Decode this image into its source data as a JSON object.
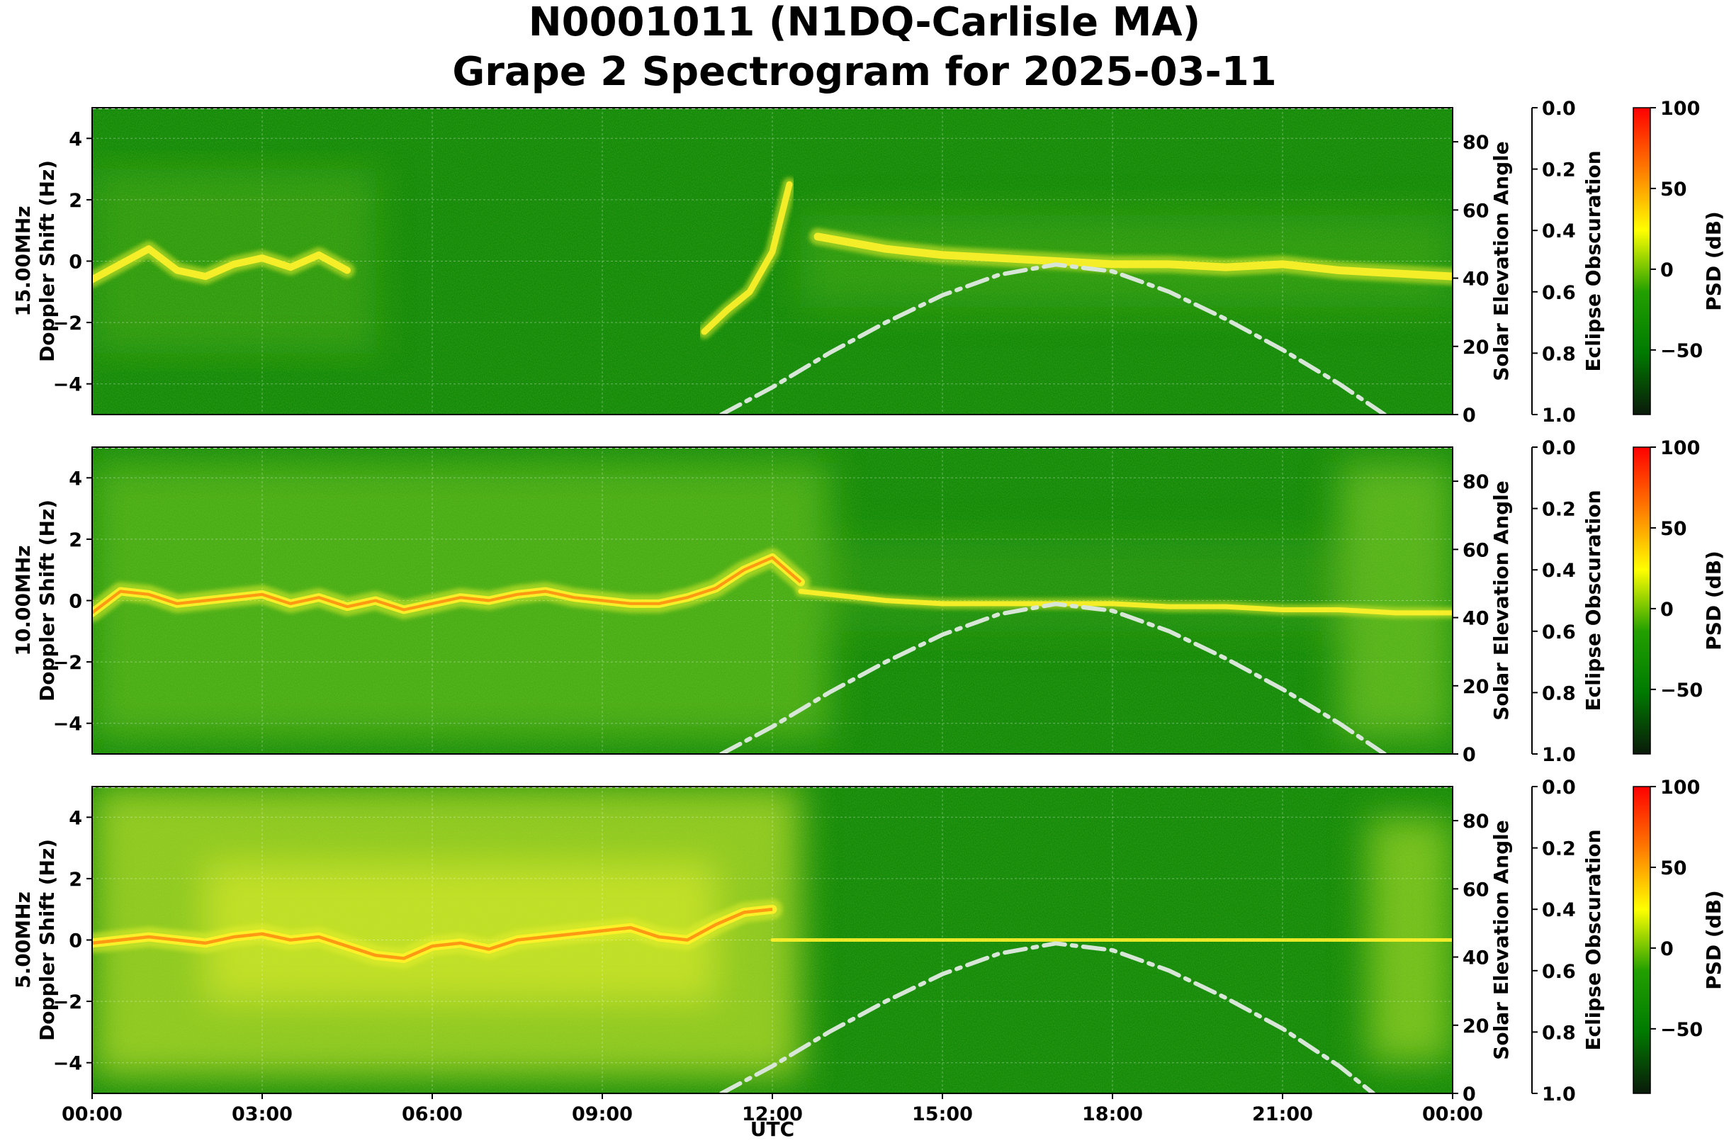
{
  "figure": {
    "title_line1": "N0001011 (N1DQ-Carlisle MA)",
    "title_line2": "Grape 2 Spectrogram for 2025-03-11",
    "xlabel": "UTC",
    "x_ticks": [
      "00:00",
      "03:00",
      "06:00",
      "09:00",
      "12:00",
      "15:00",
      "18:00",
      "21:00",
      "00:00"
    ]
  },
  "chart_data": [
    {
      "type": "heatmap",
      "panel": "15.00MHz",
      "ylabel_line1": "15.00MHz",
      "ylabel_line2": "Doppler Shift (Hz)",
      "ylim": [
        -5,
        5
      ],
      "y_ticks": [
        "4",
        "2",
        "0",
        "−2",
        "−4"
      ],
      "y_tick_values": [
        4,
        2,
        0,
        -2,
        -4
      ],
      "x_range_hours": [
        0,
        24
      ],
      "grid": true,
      "right_axis": {
        "label": "Solar Elevation Angle",
        "ylim": [
          0,
          90
        ],
        "ticks": [
          "0",
          "20",
          "40",
          "60",
          "80"
        ],
        "tick_values": [
          0,
          20,
          40,
          60,
          80
        ]
      },
      "eclipse_axis": {
        "label": "Eclipse Obscuration",
        "ylim": [
          0.0,
          1.0
        ],
        "inverted": true,
        "ticks": [
          "0.0",
          "0.2",
          "0.4",
          "0.6",
          "0.8",
          "1.0"
        ],
        "tick_values": [
          0.0,
          0.2,
          0.4,
          0.6,
          0.8,
          1.0
        ]
      },
      "colorbar": {
        "label": "PSD (dB)",
        "range": [
          -90,
          100
        ],
        "ticks": [
          "100",
          "50",
          "0",
          "−50"
        ],
        "tick_values": [
          100,
          50,
          0,
          -50
        ],
        "colors": [
          "#0a1a0a",
          "#007a00",
          "#22a000",
          "#ffff00",
          "#ff7a00",
          "#ff0000"
        ]
      },
      "solar_elevation": {
        "x_hours": [
          11.1,
          12,
          13,
          14,
          15,
          16,
          17,
          18,
          19,
          20,
          21,
          22,
          22.8
        ],
        "y_deg": [
          0,
          8,
          18,
          27,
          35,
          41,
          44,
          42,
          36,
          28,
          19,
          9,
          0
        ],
        "color": "#d8e6d8",
        "style": "dash-dot"
      },
      "traces": [
        {
          "x_hours": [
            0,
            0.5,
            1,
            1.5,
            2,
            2.5,
            3,
            3.5,
            4,
            4.5
          ],
          "y_hz": [
            -0.6,
            -0.1,
            0.4,
            -0.3,
            -0.5,
            -0.1,
            0.1,
            -0.2,
            0.2,
            -0.3
          ],
          "width": 1.0
        },
        {
          "x_hours": [
            10.8,
            11.2,
            11.6,
            12.0,
            12.3
          ],
          "y_hz": [
            -2.3,
            -1.6,
            -1.0,
            0.3,
            2.5
          ],
          "width": 0.9
        },
        {
          "x_hours": [
            12.8,
            14,
            15,
            16,
            17,
            18,
            19,
            20,
            21,
            22,
            23,
            24
          ],
          "y_hz": [
            0.8,
            0.4,
            0.2,
            0.1,
            0.0,
            -0.1,
            -0.1,
            -0.2,
            -0.1,
            -0.3,
            -0.4,
            -0.5
          ],
          "width": 1.1
        }
      ],
      "background": "green, slightly lighter speckle in first hours"
    },
    {
      "type": "heatmap",
      "panel": "10.00MHz",
      "ylabel_line1": "10.00MHz",
      "ylabel_line2": "Doppler Shift (Hz)",
      "ylim": [
        -5,
        5
      ],
      "y_ticks": [
        "4",
        "2",
        "0",
        "−2",
        "−4"
      ],
      "y_tick_values": [
        4,
        2,
        0,
        -2,
        -4
      ],
      "x_range_hours": [
        0,
        24
      ],
      "grid": true,
      "right_axis": {
        "label": "Solar Elevation Angle",
        "ylim": [
          0,
          90
        ],
        "ticks": [
          "0",
          "20",
          "40",
          "60",
          "80"
        ],
        "tick_values": [
          0,
          20,
          40,
          60,
          80
        ]
      },
      "eclipse_axis": {
        "label": "Eclipse Obscuration",
        "ylim": [
          0.0,
          1.0
        ],
        "inverted": true,
        "ticks": [
          "0.0",
          "0.2",
          "0.4",
          "0.6",
          "0.8",
          "1.0"
        ],
        "tick_values": [
          0.0,
          0.2,
          0.4,
          0.6,
          0.8,
          1.0
        ]
      },
      "colorbar": {
        "label": "PSD (dB)",
        "range": [
          -90,
          100
        ],
        "ticks": [
          "100",
          "50",
          "0",
          "−50"
        ],
        "tick_values": [
          100,
          50,
          0,
          -50
        ],
        "colors": [
          "#0a1a0a",
          "#007a00",
          "#22a000",
          "#ffff00",
          "#ff7a00",
          "#ff0000"
        ]
      },
      "solar_elevation": {
        "x_hours": [
          11.1,
          12,
          13,
          14,
          15,
          16,
          17,
          18,
          19,
          20,
          21,
          22,
          22.8
        ],
        "y_deg": [
          0,
          8,
          18,
          27,
          35,
          41,
          44,
          42,
          36,
          28,
          19,
          9,
          0
        ],
        "color": "#d8e6d8",
        "style": "dash-dot"
      },
      "traces": [
        {
          "x_hours": [
            0,
            0.5,
            1,
            1.5,
            2,
            2.5,
            3,
            3.5,
            4,
            4.5,
            5,
            5.5,
            6,
            6.5,
            7,
            7.5,
            8,
            8.5,
            9,
            9.5,
            10,
            10.5,
            11,
            11.5,
            12,
            12.5
          ],
          "y_hz": [
            -0.4,
            0.3,
            0.2,
            -0.1,
            0.0,
            0.1,
            0.2,
            -0.1,
            0.1,
            -0.2,
            0.0,
            -0.3,
            -0.1,
            0.1,
            0.0,
            0.2,
            0.3,
            0.1,
            0.0,
            -0.1,
            -0.1,
            0.1,
            0.4,
            1.0,
            1.4,
            0.6
          ],
          "width": 1.2
        },
        {
          "x_hours": [
            12.5,
            14,
            15,
            16,
            17,
            18,
            19,
            20,
            21,
            22,
            23,
            24
          ],
          "y_hz": [
            0.3,
            0.0,
            -0.1,
            -0.1,
            -0.1,
            -0.1,
            -0.2,
            -0.2,
            -0.3,
            -0.3,
            -0.4,
            -0.4
          ],
          "width": 0.7
        }
      ],
      "background": "green with yellow-green diffuse spread 00:00-13:00 and 22:00-24:00"
    },
    {
      "type": "heatmap",
      "panel": "5.00MHz",
      "ylabel_line1": "5.00MHz",
      "ylabel_line2": "Doppler Shift (Hz)",
      "ylim": [
        -5,
        5
      ],
      "y_ticks": [
        "4",
        "2",
        "0",
        "−2",
        "−4"
      ],
      "y_tick_values": [
        4,
        2,
        0,
        -2,
        -4
      ],
      "x_range_hours": [
        0,
        24
      ],
      "grid": true,
      "right_axis": {
        "label": "Solar Elevation Angle",
        "ylim": [
          0,
          90
        ],
        "ticks": [
          "0",
          "20",
          "40",
          "60",
          "80"
        ],
        "tick_values": [
          0,
          20,
          40,
          60,
          80
        ]
      },
      "eclipse_axis": {
        "label": "Eclipse Obscuration",
        "ylim": [
          0.0,
          1.0
        ],
        "inverted": true,
        "ticks": [
          "0.0",
          "0.2",
          "0.4",
          "0.6",
          "0.8",
          "1.0"
        ],
        "tick_values": [
          0.0,
          0.2,
          0.4,
          0.6,
          0.8,
          1.0
        ]
      },
      "colorbar": {
        "label": "PSD (dB)",
        "range": [
          -90,
          100
        ],
        "ticks": [
          "100",
          "50",
          "0",
          "−50"
        ],
        "tick_values": [
          100,
          50,
          0,
          -50
        ],
        "colors": [
          "#0a1a0a",
          "#007a00",
          "#22a000",
          "#ffff00",
          "#ff7a00",
          "#ff0000"
        ]
      },
      "solar_elevation": {
        "x_hours": [
          11.1,
          12,
          13,
          14,
          15,
          16,
          17,
          18,
          19,
          20,
          21,
          22,
          22.6
        ],
        "y_deg": [
          0,
          8,
          18,
          27,
          35,
          41,
          44,
          42,
          36,
          28,
          19,
          8,
          0
        ],
        "color": "#d8e6d8",
        "style": "dash-dot"
      },
      "traces": [
        {
          "x_hours": [
            0,
            0.5,
            1,
            1.5,
            2,
            2.5,
            3,
            3.5,
            4,
            4.5,
            5,
            5.5,
            6,
            6.5,
            7,
            7.5,
            8,
            8.5,
            9,
            9.5,
            10,
            10.5,
            11,
            11.5,
            12
          ],
          "y_hz": [
            -0.1,
            0.0,
            0.1,
            0.0,
            -0.1,
            0.1,
            0.2,
            0.0,
            0.1,
            -0.2,
            -0.5,
            -0.6,
            -0.2,
            -0.1,
            -0.3,
            0.0,
            0.1,
            0.2,
            0.3,
            0.4,
            0.1,
            0.0,
            0.5,
            0.9,
            1.0
          ],
          "width": 1.3
        },
        {
          "x_hours": [
            12,
            14,
            16,
            18,
            20,
            22,
            24
          ],
          "y_hz": [
            0.0,
            0.0,
            0.0,
            0.0,
            0.0,
            0.0,
            0.0
          ],
          "width": 0.5
        }
      ],
      "background": "yellow-green diffuse 00:00-12:30, green afterwards, lighter again 22:30-24:00"
    }
  ]
}
